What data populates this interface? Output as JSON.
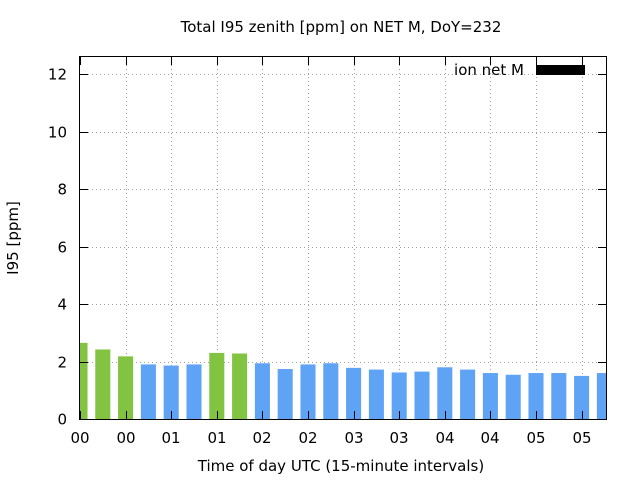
{
  "chart_data": {
    "type": "bar",
    "title": "Total I95 zenith [ppm] on NET M, DoY=232",
    "xlabel": "Time of day UTC (15-minute intervals)",
    "ylabel": "I95 [ppm]",
    "ylim": [
      0,
      12.6
    ],
    "yticks": [
      0,
      2,
      4,
      6,
      8,
      10,
      12
    ],
    "x_tick_labels": [
      "00",
      "00",
      "01",
      "01",
      "02",
      "02",
      "03",
      "03",
      "04",
      "04",
      "05",
      "05"
    ],
    "grid": true,
    "legend": {
      "position": "top-right",
      "label": "ion net M",
      "color": "#000000"
    },
    "colors": {
      "green": "#82c341",
      "blue": "#5fa3f5"
    },
    "values": [
      2.65,
      2.42,
      2.18,
      1.9,
      1.86,
      1.9,
      2.3,
      2.28,
      1.94,
      1.74,
      1.9,
      1.94,
      1.78,
      1.72,
      1.62,
      1.65,
      1.8,
      1.72,
      1.6,
      1.54,
      1.6,
      1.6,
      1.5,
      1.6
    ],
    "bar_colors": [
      "green",
      "green",
      "green",
      "blue",
      "blue",
      "blue",
      "green",
      "green",
      "blue",
      "blue",
      "blue",
      "blue",
      "blue",
      "blue",
      "blue",
      "blue",
      "blue",
      "blue",
      "blue",
      "blue",
      "blue",
      "blue",
      "blue",
      "blue"
    ]
  }
}
